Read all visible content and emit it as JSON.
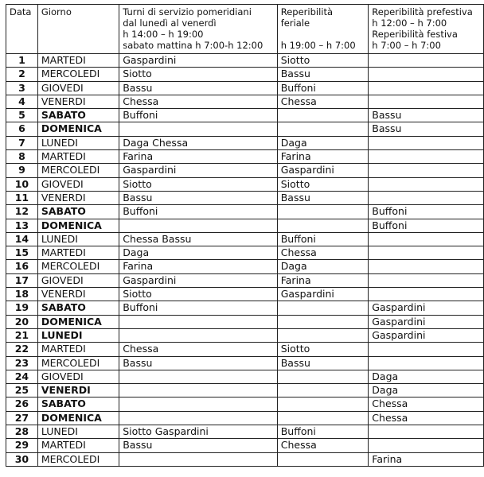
{
  "header": {
    "data": "Data",
    "giorno": "Giorno",
    "turni": [
      "Turni di servizio pomeridiani",
      "dal lunedì al venerdì",
      "h 14:00 – h 19:00",
      "sabato mattina h 7:00-h 12:00"
    ],
    "feriale": [
      "Reperibilità",
      "feriale",
      "",
      "h 19:00 – h 7:00"
    ],
    "festiva": [
      "Reperibilità prefestiva",
      "h 12:00 – h 7:00",
      "Reperibilità festiva",
      "h 7:00 – h 7:00"
    ]
  },
  "rows": [
    {
      "n": "1",
      "day": "MARTEDI",
      "bold": false,
      "turni": "Gaspardini",
      "feriale": "Siotto",
      "festiva": ""
    },
    {
      "n": "2",
      "day": "MERCOLEDI",
      "bold": false,
      "turni": "Siotto",
      "feriale": "Bassu",
      "festiva": ""
    },
    {
      "n": "3",
      "day": "GIOVEDI",
      "bold": false,
      "turni": "Bassu",
      "feriale": "Buffoni",
      "festiva": ""
    },
    {
      "n": "4",
      "day": "VENERDI",
      "bold": false,
      "turni": "Chessa",
      "feriale": "Chessa",
      "festiva": ""
    },
    {
      "n": "5",
      "day": "SABATO",
      "bold": true,
      "turni": "Buffoni",
      "feriale": "",
      "festiva": "Bassu"
    },
    {
      "n": "6",
      "day": "DOMENICA",
      "bold": true,
      "turni": "",
      "feriale": "",
      "festiva": "Bassu"
    },
    {
      "n": "7",
      "day": "LUNEDI",
      "bold": false,
      "turni": "Daga Chessa",
      "feriale": "Daga",
      "festiva": ""
    },
    {
      "n": "8",
      "day": "MARTEDI",
      "bold": false,
      "turni": "Farina",
      "feriale": "Farina",
      "festiva": ""
    },
    {
      "n": "9",
      "day": "MERCOLEDI",
      "bold": false,
      "turni": "Gaspardini",
      "feriale": "Gaspardini",
      "festiva": ""
    },
    {
      "n": "10",
      "day": "GIOVEDI",
      "bold": false,
      "turni": "Siotto",
      "feriale": "Siotto",
      "festiva": ""
    },
    {
      "n": "11",
      "day": "VENERDI",
      "bold": false,
      "turni": "Bassu",
      "feriale": "Bassu",
      "festiva": ""
    },
    {
      "n": "12",
      "day": "SABATO",
      "bold": true,
      "turni": "Buffoni",
      "feriale": "",
      "festiva": "Buffoni"
    },
    {
      "n": "13",
      "day": "DOMENICA",
      "bold": true,
      "turni": "",
      "feriale": "",
      "festiva": "Buffoni"
    },
    {
      "n": "14",
      "day": "LUNEDI",
      "bold": false,
      "turni": "Chessa Bassu",
      "feriale": "Buffoni",
      "festiva": ""
    },
    {
      "n": "15",
      "day": "MARTEDI",
      "bold": false,
      "turni": "Daga",
      "feriale": "Chessa",
      "festiva": ""
    },
    {
      "n": "16",
      "day": "MERCOLEDI",
      "bold": false,
      "turni": "Farina",
      "feriale": "Daga",
      "festiva": ""
    },
    {
      "n": "17",
      "day": "GIOVEDI",
      "bold": false,
      "turni": "Gaspardini",
      "feriale": "Farina",
      "festiva": ""
    },
    {
      "n": "18",
      "day": "VENERDI",
      "bold": false,
      "turni": "Siotto",
      "feriale": "Gaspardini",
      "festiva": ""
    },
    {
      "n": "19",
      "day": "SABATO",
      "bold": true,
      "turni": "Buffoni",
      "feriale": "",
      "festiva": "Gaspardini"
    },
    {
      "n": "20",
      "day": "DOMENICA",
      "bold": true,
      "turni": "",
      "feriale": "",
      "festiva": "Gaspardini"
    },
    {
      "n": "21",
      "day": "LUNEDI",
      "bold": true,
      "turni": "",
      "feriale": "",
      "festiva": "Gaspardini"
    },
    {
      "n": "22",
      "day": "MARTEDI",
      "bold": false,
      "turni": "Chessa",
      "feriale": "Siotto",
      "festiva": ""
    },
    {
      "n": "23",
      "day": "MERCOLEDI",
      "bold": false,
      "turni": "Bassu",
      "feriale": "Bassu",
      "festiva": ""
    },
    {
      "n": "24",
      "day": "GIOVEDI",
      "bold": false,
      "turni": "",
      "feriale": "",
      "festiva": "Daga"
    },
    {
      "n": "25",
      "day": "VENERDI",
      "bold": true,
      "turni": "",
      "feriale": "",
      "festiva": "Daga"
    },
    {
      "n": "26",
      "day": "SABATO",
      "bold": true,
      "turni": "",
      "feriale": "",
      "festiva": "Chessa"
    },
    {
      "n": "27",
      "day": "DOMENICA",
      "bold": true,
      "turni": "",
      "feriale": "",
      "festiva": "Chessa"
    },
    {
      "n": "28",
      "day": "LUNEDI",
      "bold": false,
      "turni": "Siotto Gaspardini",
      "feriale": "Buffoni",
      "festiva": ""
    },
    {
      "n": "29",
      "day": "MARTEDI",
      "bold": false,
      "turni": "Bassu",
      "feriale": "Chessa",
      "festiva": ""
    },
    {
      "n": "30",
      "day": "MERCOLEDI",
      "bold": false,
      "turni": "",
      "feriale": "",
      "festiva": "Farina"
    }
  ]
}
